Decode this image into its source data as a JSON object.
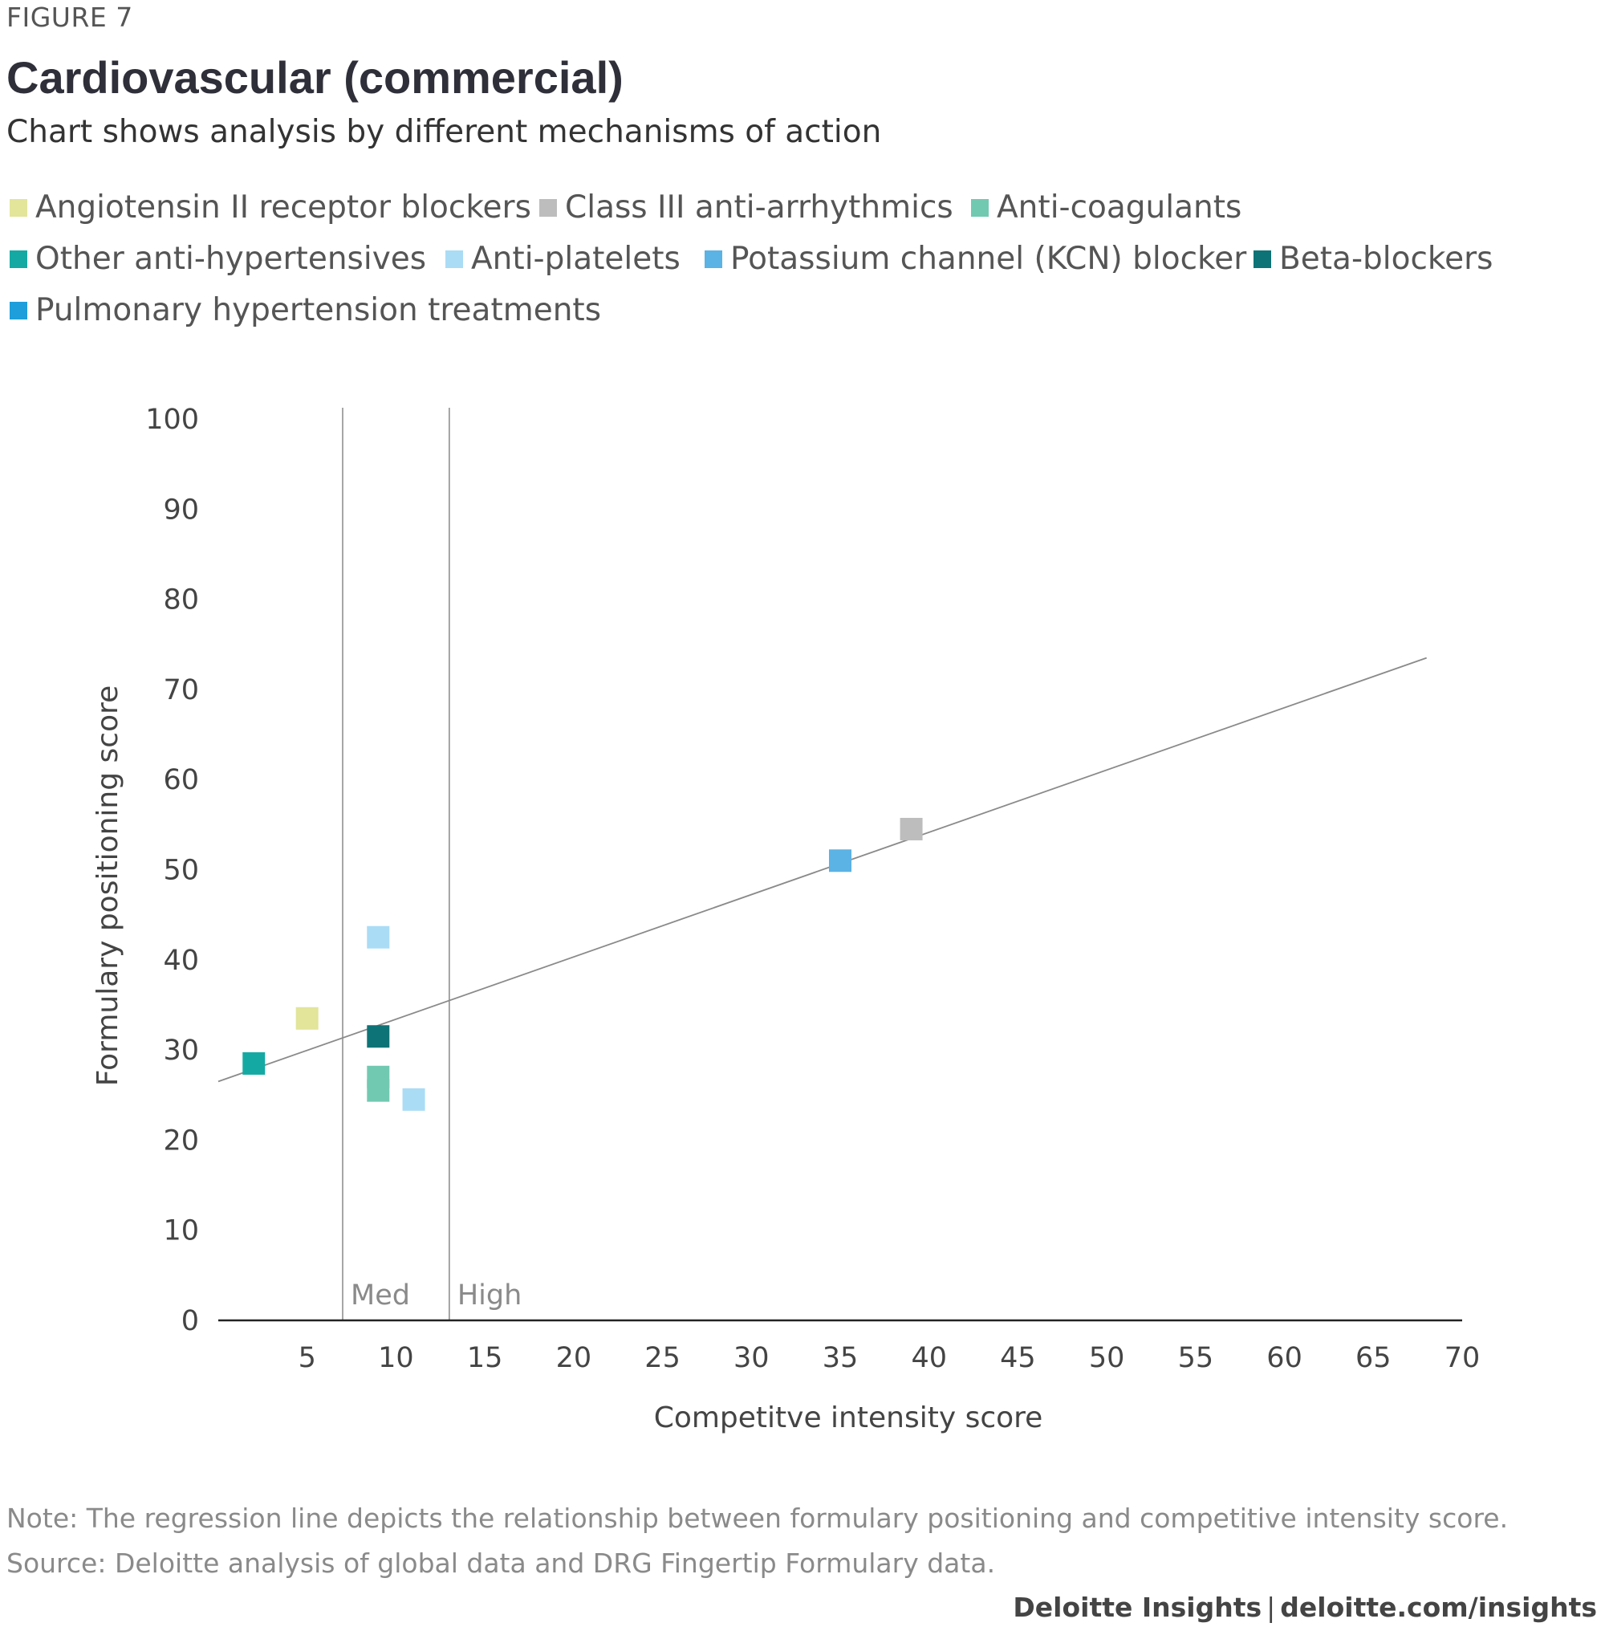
{
  "figure_label": "FIGURE 7",
  "note": "Note: The regression line depicts the relationship between formulary positioning and competitive intensity score.",
  "source": "Source: Deloitte analysis of global data and DRG Fingertip Formulary data.",
  "credit": {
    "brand": "Deloitte Insights",
    "separator": "|",
    "url": "deloitte.com/insights"
  },
  "chart_data": {
    "type": "scatter",
    "title": "Cardiovascular (commercial)",
    "subtitle": "Chart shows analysis by different mechanisms of action",
    "xlabel": "Competitve intensity score",
    "ylabel": "Formulary positioning score",
    "xlim": [
      0,
      70
    ],
    "ylim": [
      0,
      100
    ],
    "xticks": [
      5,
      10,
      15,
      20,
      25,
      30,
      35,
      40,
      45,
      50,
      55,
      60,
      65,
      70
    ],
    "yticks": [
      0,
      10,
      20,
      30,
      40,
      50,
      60,
      70,
      80,
      90,
      100
    ],
    "grid": false,
    "legend_position": "top",
    "series": [
      {
        "name": "Angiotensin II receptor blockers",
        "color": "#e2e59a",
        "points": [
          [
            5,
            33.5
          ]
        ]
      },
      {
        "name": "Class III anti-arrhythmics",
        "color": "#bdbdbd",
        "points": [
          [
            39,
            54.5
          ]
        ]
      },
      {
        "name": "Anti-coagulants",
        "color": "#72c9b1",
        "points": [
          [
            9,
            27
          ],
          [
            9,
            25.5
          ]
        ]
      },
      {
        "name": "Other anti-hypertensives",
        "color": "#14aaa3",
        "points": [
          [
            2,
            28.5
          ]
        ]
      },
      {
        "name": "Anti-platelets",
        "color": "#aadcf5",
        "points": [
          [
            9,
            42.5
          ],
          [
            11,
            24.5
          ]
        ]
      },
      {
        "name": "Potassium channel (KCN) blocker",
        "color": "#5bb2e4",
        "points": [
          [
            35,
            51
          ]
        ]
      },
      {
        "name": "Beta-blockers",
        "color": "#0e7376",
        "points": [
          [
            9,
            31.5
          ]
        ]
      },
      {
        "name": "Pulmonary hypertension treatments",
        "color": "#1e9edb",
        "points": []
      }
    ],
    "regression_line": {
      "from": [
        0,
        26.5
      ],
      "to": [
        68,
        73.5
      ],
      "color": "#8a8a8a"
    },
    "thresholds": [
      {
        "label": "Med",
        "x": 7
      },
      {
        "label": "High",
        "x": 13
      }
    ]
  }
}
